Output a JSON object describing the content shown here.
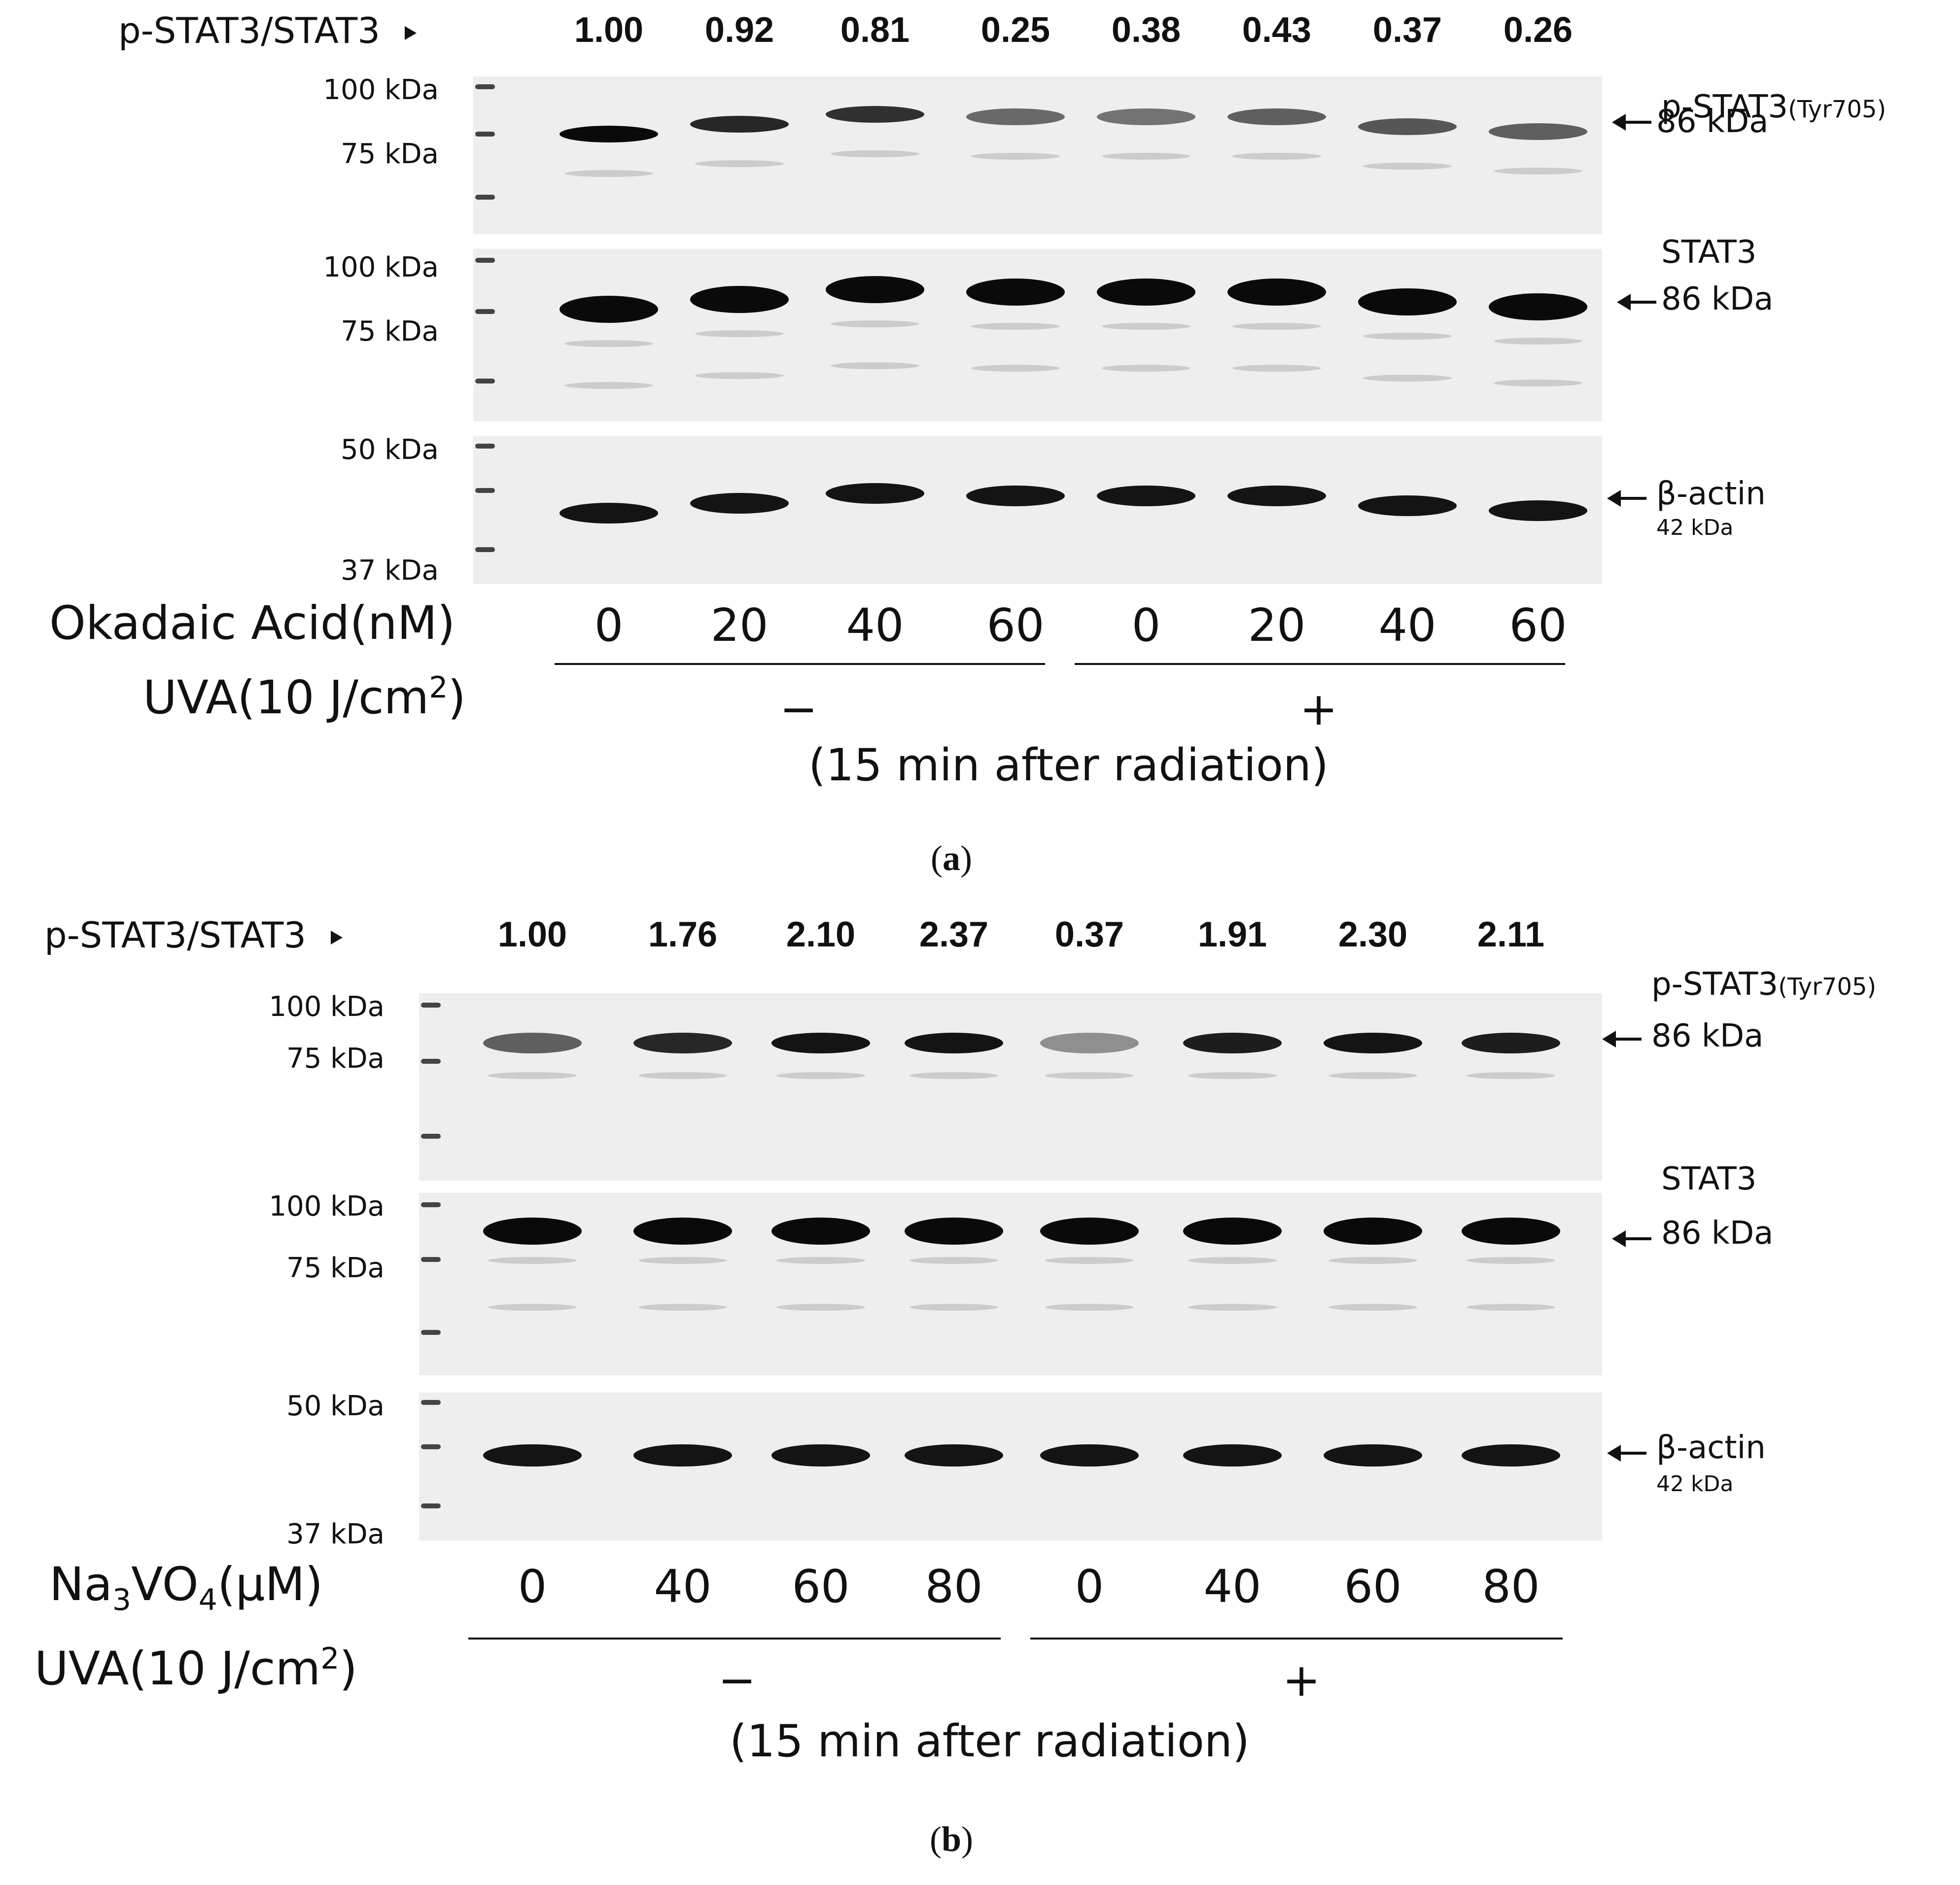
{
  "ratio_label": "p-STAT3/STAT3",
  "panel_a": {
    "ratios": [
      "1.00",
      "0.92",
      "0.81",
      "0.25",
      "0.38",
      "0.43",
      "0.37",
      "0.26"
    ],
    "blots": [
      {
        "mw": [
          "100 kDa",
          "75 kDa"
        ],
        "name": "p-STAT3",
        "sub": "(Tyr705)",
        "size": "86 kDa",
        "band_intensity": [
          1.0,
          0.85,
          0.8,
          0.5,
          0.45,
          0.55,
          0.6,
          0.55
        ]
      },
      {
        "mw": [
          "100 kDa",
          "75 kDa"
        ],
        "name": "STAT3",
        "size": "86 kDa",
        "band_intensity": [
          1.0,
          1.0,
          1.0,
          1.0,
          1.0,
          1.0,
          1.0,
          1.0
        ]
      },
      {
        "mw": [
          "50 kDa",
          "37 kDa"
        ],
        "name": "β-actin",
        "size": "42 kDa",
        "band_intensity": [
          0.95,
          0.95,
          0.95,
          0.95,
          0.95,
          0.95,
          0.95,
          0.95
        ]
      }
    ],
    "treatment": {
      "label": "Okadaic Acid(nM)",
      "values": [
        "0",
        "20",
        "40",
        "60",
        "0",
        "20",
        "40",
        "60"
      ]
    },
    "uva": {
      "prefix": "UVA(10 J/cm",
      "sup": "2",
      "suffix": ")",
      "minus": "−",
      "plus": "+"
    },
    "note": "(15 min after radiation)",
    "caption": "a"
  },
  "panel_b": {
    "ratios": [
      "1.00",
      "1.76",
      "2.10",
      "2.37",
      "0.37",
      "1.91",
      "2.30",
      "2.11"
    ],
    "blots": [
      {
        "mw": [
          "100 kDa",
          "75 kDa"
        ],
        "name": "p-STAT3",
        "sub": "(Tyr705)",
        "size": "86 kDa",
        "band_intensity": [
          0.55,
          0.85,
          0.95,
          0.95,
          0.3,
          0.9,
          0.95,
          0.9
        ]
      },
      {
        "mw": [
          "100 kDa",
          "75 kDa"
        ],
        "name": "STAT3",
        "size": "86 kDa",
        "band_intensity": [
          1.0,
          1.0,
          1.0,
          1.0,
          1.0,
          1.0,
          1.0,
          1.0
        ]
      },
      {
        "mw": [
          "50 kDa",
          "37 kDa"
        ],
        "name": "β-actin",
        "size": "42 kDa",
        "band_intensity": [
          0.95,
          0.95,
          0.95,
          0.95,
          0.95,
          0.95,
          0.95,
          0.95
        ]
      }
    ],
    "treatment": {
      "label_main": "Na",
      "sub1": "3",
      "label_mid": "VO",
      "sub2": "4",
      "label_end": "(μM)",
      "values": [
        "0",
        "40",
        "60",
        "80",
        "0",
        "40",
        "60",
        "80"
      ]
    },
    "uva": {
      "prefix": "UVA(10 J/cm",
      "sup": "2",
      "suffix": ")",
      "minus": "−",
      "plus": "+"
    },
    "note": "(15 min after radiation)",
    "caption": "b"
  }
}
